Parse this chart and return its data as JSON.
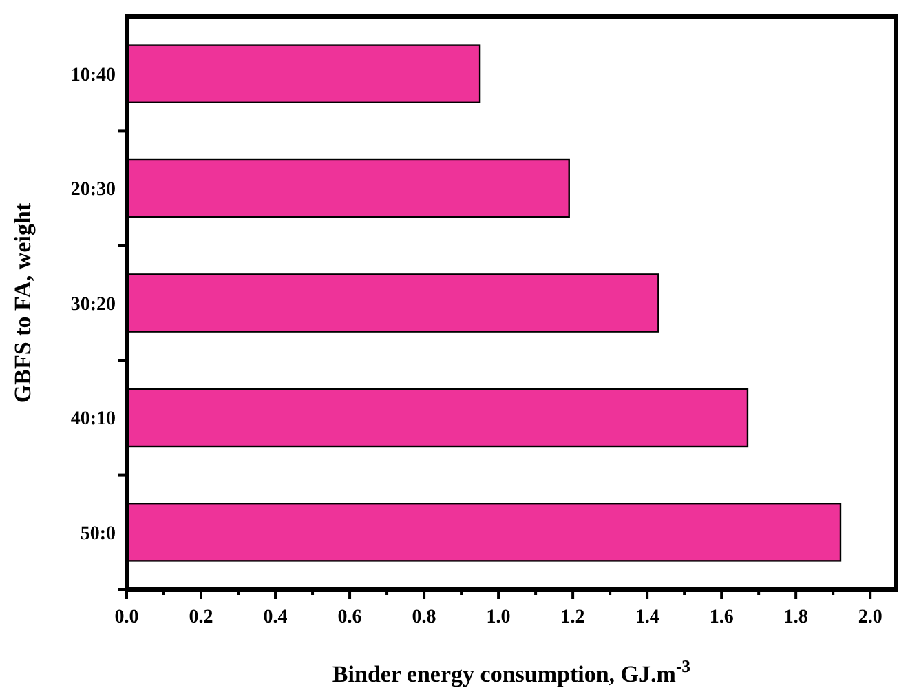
{
  "chart_data": {
    "type": "bar",
    "orientation": "horizontal",
    "categories": [
      "10:40",
      "20:30",
      "30:20",
      "40:10",
      "50:0"
    ],
    "values": [
      0.95,
      1.19,
      1.43,
      1.67,
      1.92
    ],
    "color": "#ee3399",
    "xlim": [
      0,
      2.07
    ],
    "xticks": [
      {
        "value": 0,
        "label": "0.0"
      },
      {
        "value": 0.1,
        "label": null
      },
      0.2,
      {
        "value": 0.3,
        "label": null
      },
      0.4,
      {
        "value": 0.5,
        "label": null
      },
      0.6,
      {
        "value": 0.7,
        "label": null
      },
      0.8,
      {
        "value": 0.9,
        "label": null
      },
      {
        "value": 1,
        "label": "1.0"
      },
      {
        "value": 1.1,
        "label": null
      },
      1.2,
      {
        "value": 1.3,
        "label": null
      },
      1.4,
      {
        "value": 1.5,
        "label": null
      },
      1.6,
      {
        "value": 1.7,
        "label": null
      },
      1.8,
      {
        "value": 1.9,
        "label": null
      },
      {
        "value": 2,
        "label": "2.0"
      }
    ],
    "xlabel": "Binder energy consumption, GJ.m$^{-3}$",
    "ylabel": "GBFS to FA, weight",
    "grid": false
  }
}
